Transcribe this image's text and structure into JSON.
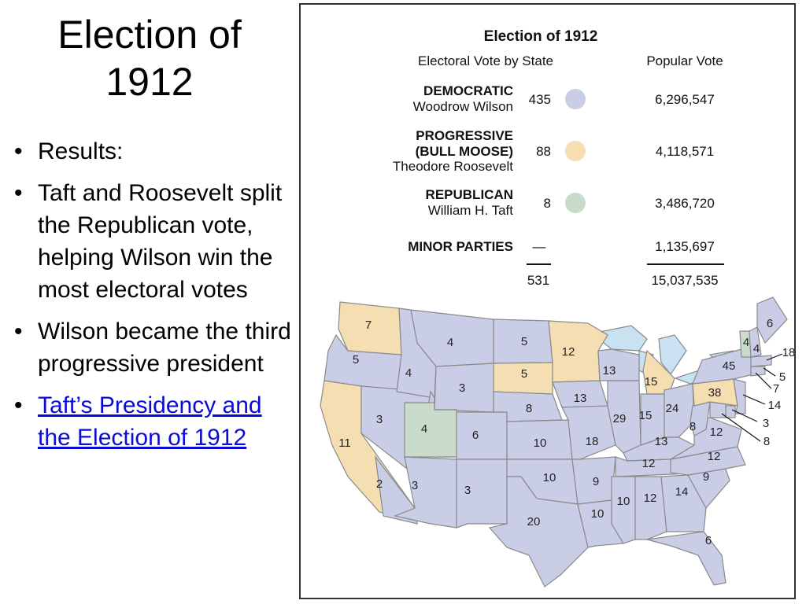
{
  "slide": {
    "title": "Election of 1912",
    "bullets": [
      "Results:",
      "Taft and Roosevelt split the Republican vote, helping Wilson win the most electoral votes",
      "Wilson became the third progressive president"
    ],
    "link_text": "Taft’s Presidency and the Election of 1912"
  },
  "figure": {
    "title": "Election of 1912",
    "col_electoral": "Electoral Vote by State",
    "col_popular": "Popular Vote",
    "parties": [
      {
        "party": "DEMOCRATIC",
        "candidate": "Woodrow Wilson",
        "electoral": "435",
        "popular": "6,296,547",
        "color": "#c9cde6"
      },
      {
        "party": "PROGRESSIVE",
        "party2": "(BULL MOOSE)",
        "candidate": "Theodore Roosevelt",
        "electoral": "88",
        "popular": "4,118,571",
        "color": "#f5deb1"
      },
      {
        "party": "REPUBLICAN",
        "candidate": "William H. Taft",
        "electoral": "8",
        "popular": "3,486,720",
        "color": "#c9dccb"
      },
      {
        "party": "MINOR PARTIES",
        "electoral": "—",
        "popular": "1,135,697"
      }
    ],
    "total_electoral": "531",
    "total_popular": "15,037,535",
    "map_colors": {
      "democratic": "#c9cde6",
      "progressive": "#f5deb1",
      "republican": "#c9dccb",
      "water": "#c8e2f2",
      "border": "#8a8a8a"
    },
    "state_votes": [
      {
        "state": "WA",
        "votes": "7",
        "party": "progressive"
      },
      {
        "state": "OR",
        "votes": "5",
        "party": "democratic"
      },
      {
        "state": "CA",
        "votes": "11",
        "party": "progressive"
      },
      {
        "state": "CA-south",
        "votes": "2",
        "party": "democratic"
      },
      {
        "state": "ID",
        "votes": "4",
        "party": "democratic"
      },
      {
        "state": "NV",
        "votes": "3",
        "party": "democratic"
      },
      {
        "state": "MT",
        "votes": "4",
        "party": "democratic"
      },
      {
        "state": "WY",
        "votes": "3",
        "party": "democratic"
      },
      {
        "state": "UT",
        "votes": "4",
        "party": "republican"
      },
      {
        "state": "CO",
        "votes": "6",
        "party": "democratic"
      },
      {
        "state": "AZ",
        "votes": "3",
        "party": "democratic"
      },
      {
        "state": "NM",
        "votes": "3",
        "party": "democratic"
      },
      {
        "state": "ND",
        "votes": "5",
        "party": "democratic"
      },
      {
        "state": "SD",
        "votes": "5",
        "party": "progressive"
      },
      {
        "state": "NE",
        "votes": "8",
        "party": "democratic"
      },
      {
        "state": "KS",
        "votes": "10",
        "party": "democratic"
      },
      {
        "state": "OK",
        "votes": "10",
        "party": "democratic"
      },
      {
        "state": "TX",
        "votes": "20",
        "party": "democratic"
      },
      {
        "state": "MN",
        "votes": "12",
        "party": "progressive"
      },
      {
        "state": "IA",
        "votes": "13",
        "party": "democratic"
      },
      {
        "state": "MO",
        "votes": "18",
        "party": "democratic"
      },
      {
        "state": "AR",
        "votes": "9",
        "party": "democratic"
      },
      {
        "state": "LA",
        "votes": "10",
        "party": "democratic"
      },
      {
        "state": "WI",
        "votes": "13",
        "party": "democratic"
      },
      {
        "state": "IL",
        "votes": "29",
        "party": "democratic"
      },
      {
        "state": "MI",
        "votes": "15",
        "party": "progressive"
      },
      {
        "state": "IN",
        "votes": "15",
        "party": "democratic"
      },
      {
        "state": "OH",
        "votes": "24",
        "party": "democratic"
      },
      {
        "state": "KY",
        "votes": "13",
        "party": "democratic"
      },
      {
        "state": "TN",
        "votes": "12",
        "party": "democratic"
      },
      {
        "state": "MS",
        "votes": "10",
        "party": "democratic"
      },
      {
        "state": "AL",
        "votes": "12",
        "party": "democratic"
      },
      {
        "state": "GA",
        "votes": "14",
        "party": "democratic"
      },
      {
        "state": "FL",
        "votes": "6",
        "party": "democratic"
      },
      {
        "state": "SC",
        "votes": "9",
        "party": "democratic"
      },
      {
        "state": "NC",
        "votes": "12",
        "party": "democratic"
      },
      {
        "state": "VA",
        "votes": "12",
        "party": "democratic"
      },
      {
        "state": "WV",
        "votes": "8",
        "party": "democratic"
      },
      {
        "state": "PA",
        "votes": "38",
        "party": "progressive"
      },
      {
        "state": "NY",
        "votes": "45",
        "party": "democratic"
      },
      {
        "state": "VT",
        "votes": "4",
        "party": "republican"
      },
      {
        "state": "NH",
        "votes": "4",
        "party": "democratic"
      },
      {
        "state": "ME",
        "votes": "6",
        "party": "democratic"
      },
      {
        "state": "MA",
        "votes": "18",
        "party": "democratic"
      },
      {
        "state": "RI",
        "votes": "5",
        "party": "democratic"
      },
      {
        "state": "CT",
        "votes": "7",
        "party": "democratic"
      },
      {
        "state": "NJ",
        "votes": "14",
        "party": "democratic"
      },
      {
        "state": "DE",
        "votes": "3",
        "party": "democratic"
      },
      {
        "state": "MD",
        "votes": "8",
        "party": "democratic"
      }
    ]
  }
}
